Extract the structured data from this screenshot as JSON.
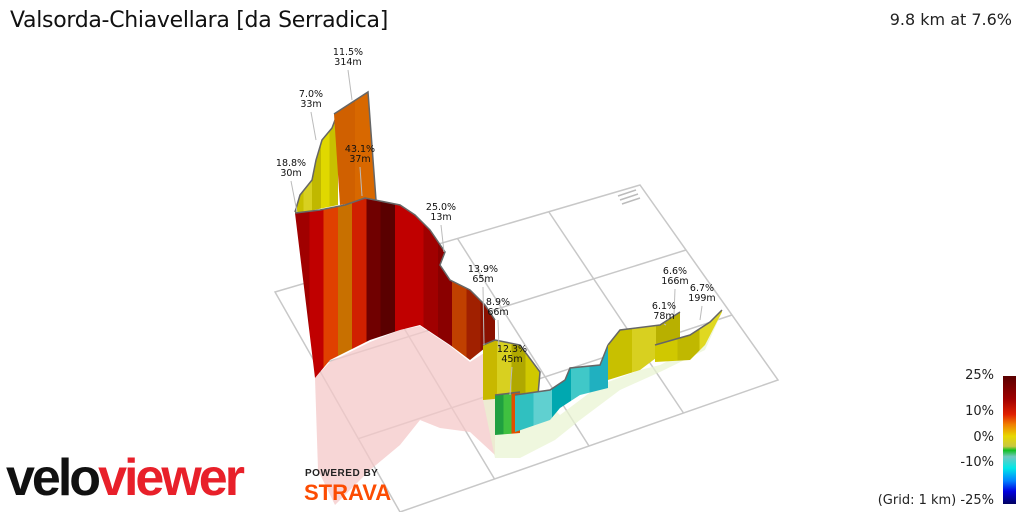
{
  "header": {
    "title": "Valsorda-Chiavellara [da Serradica]",
    "summary": "9.8 km at 7.6%"
  },
  "annotations": [
    {
      "grade": "11.5%",
      "length": "314m"
    },
    {
      "grade": "7.0%",
      "length": "33m"
    },
    {
      "grade": "18.8%",
      "length": "30m"
    },
    {
      "grade": "43.1%",
      "length": "37m"
    },
    {
      "grade": "25.0%",
      "length": "13m"
    },
    {
      "grade": "13.9%",
      "length": "65m"
    },
    {
      "grade": "8.9%",
      "length": "66m"
    },
    {
      "grade": "12.3%",
      "length": "45m"
    },
    {
      "grade": "6.6%",
      "length": "166m"
    },
    {
      "grade": "6.1%",
      "length": "78m"
    },
    {
      "grade": "6.7%",
      "length": "199m"
    }
  ],
  "legend": {
    "ticks": [
      "25%",
      "10%",
      "0%",
      "-10%",
      "-25%"
    ],
    "grid_note": "(Grid: 1 km)",
    "colors": [
      "#5a0000",
      "#e02000",
      "#e8d800",
      "#10c020",
      "#00e8e8",
      "#0000e0",
      "#000060"
    ]
  },
  "branding": {
    "logo_part1": "velo",
    "logo_part2": "viewer",
    "powered_by": "POWERED BY",
    "strava": "STRAVA"
  }
}
